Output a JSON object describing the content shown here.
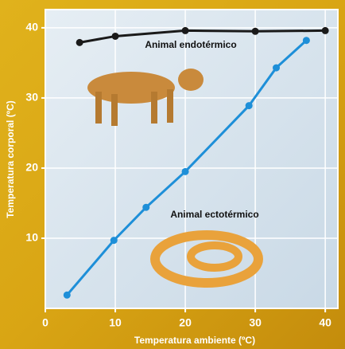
{
  "chart_data": {
    "type": "line",
    "x_label": "Temperatura ambiente (ºC)",
    "y_label": "Temperatura corporal (ºC)",
    "xlim": [
      0,
      41.8
    ],
    "ylim": [
      0,
      42.6
    ],
    "xticks": [
      0,
      10,
      20,
      30,
      40
    ],
    "yticks": [
      10,
      20,
      30,
      40
    ],
    "grid": true,
    "series": [
      {
        "name": "Animal endotérmico",
        "color": "#1a1a1a",
        "x": [
          4.9,
          10,
          20,
          30,
          40
        ],
        "values": [
          37.9,
          38.8,
          39.6,
          39.5,
          39.6
        ]
      },
      {
        "name": "Animal ectotérmico",
        "color": "#1e8fd8",
        "x": [
          3.1,
          9.8,
          14.4,
          20,
          29.1,
          33,
          37.3
        ],
        "values": [
          1.9,
          9.7,
          14.4,
          19.5,
          28.9,
          34.3,
          38.2
        ]
      }
    ]
  }
}
